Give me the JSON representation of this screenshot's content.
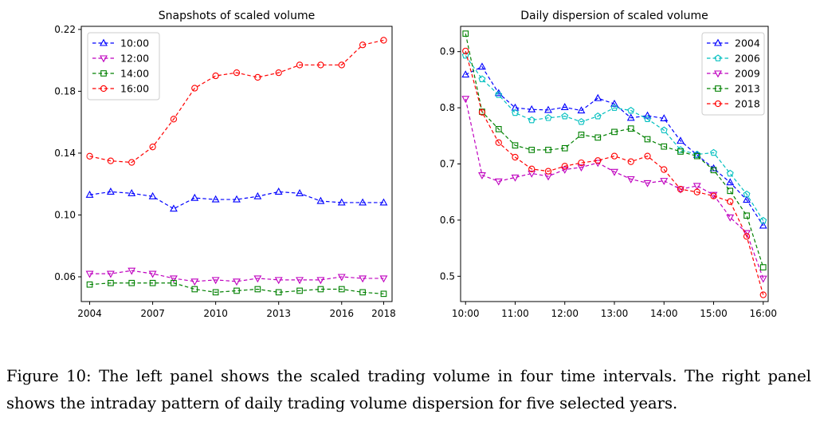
{
  "caption": "Figure 10: The left panel shows the scaled trading volume in four time intervals. The right panel shows the intraday pattern of daily trading volume dispersion for five selected years.",
  "chart_data": [
    {
      "type": "line",
      "title": "Snapshots of scaled volume",
      "xlabel": "",
      "ylabel": "",
      "xlim": [
        2003.6,
        2018.4
      ],
      "ylim": [
        0.044,
        0.222
      ],
      "xticks": [
        2004,
        2007,
        2010,
        2013,
        2016,
        2018
      ],
      "yticks": [
        0.06,
        0.1,
        0.14,
        0.18,
        0.22
      ],
      "ytick_labels": [
        "0.06",
        "0.10",
        "0.14",
        "0.18",
        "0.22"
      ],
      "legend_position": "upper-left",
      "grid": false,
      "x": [
        2004,
        2005,
        2006,
        2007,
        2008,
        2009,
        2010,
        2011,
        2012,
        2013,
        2014,
        2015,
        2016,
        2017,
        2018
      ],
      "series": [
        {
          "name": "10:00",
          "color": "#0000ff",
          "marker": "triangle-up",
          "values": [
            0.113,
            0.115,
            0.114,
            0.112,
            0.104,
            0.111,
            0.11,
            0.11,
            0.112,
            0.115,
            0.114,
            0.109,
            0.108,
            0.108,
            0.108
          ]
        },
        {
          "name": "12:00",
          "color": "#bf00bf",
          "marker": "triangle-down",
          "values": [
            0.062,
            0.062,
            0.064,
            0.062,
            0.059,
            0.057,
            0.058,
            0.057,
            0.059,
            0.058,
            0.058,
            0.058,
            0.06,
            0.059,
            0.059
          ]
        },
        {
          "name": "14:00",
          "color": "#008000",
          "marker": "square",
          "values": [
            0.055,
            0.056,
            0.056,
            0.056,
            0.056,
            0.052,
            0.05,
            0.051,
            0.052,
            0.05,
            0.051,
            0.052,
            0.052,
            0.05,
            0.049
          ]
        },
        {
          "name": "16:00",
          "color": "#ff0000",
          "marker": "circle",
          "values": [
            0.138,
            0.135,
            0.134,
            0.144,
            0.162,
            0.182,
            0.19,
            0.192,
            0.189,
            0.192,
            0.197,
            0.197,
            0.197,
            0.21,
            0.213
          ]
        }
      ]
    },
    {
      "type": "line",
      "title": "Daily dispersion of scaled volume",
      "xlabel": "",
      "ylabel": "",
      "xlim": [
        9.9,
        16.1
      ],
      "ylim": [
        0.455,
        0.945
      ],
      "xticks": [
        10,
        11,
        12,
        13,
        14,
        15,
        16
      ],
      "xtick_labels": [
        "10:00",
        "11:00",
        "12:00",
        "13:00",
        "14:00",
        "15:00",
        "16:00"
      ],
      "yticks": [
        0.5,
        0.6,
        0.7,
        0.8,
        0.9
      ],
      "ytick_labels": [
        "0.5",
        "0.6",
        "0.7",
        "0.8",
        "0.9"
      ],
      "legend_position": "upper-right",
      "grid": false,
      "x": [
        10.0,
        10.333,
        10.667,
        11.0,
        11.333,
        11.667,
        12.0,
        12.333,
        12.667,
        13.0,
        13.333,
        13.667,
        14.0,
        14.333,
        14.667,
        15.0,
        15.333,
        15.667,
        16.0
      ],
      "series": [
        {
          "name": "2004",
          "color": "#0000ff",
          "marker": "triangle-up",
          "values": [
            0.859,
            0.873,
            0.826,
            0.8,
            0.797,
            0.796,
            0.801,
            0.795,
            0.817,
            0.807,
            0.782,
            0.786,
            0.781,
            0.741,
            0.716,
            0.692,
            0.667,
            0.636,
            0.59
          ]
        },
        {
          "name": "2006",
          "color": "#00bfbf",
          "marker": "pentagon",
          "values": [
            0.893,
            0.851,
            0.823,
            0.791,
            0.778,
            0.782,
            0.785,
            0.775,
            0.785,
            0.8,
            0.795,
            0.78,
            0.76,
            0.725,
            0.717,
            0.72,
            0.683,
            0.646,
            0.599
          ]
        },
        {
          "name": "2009",
          "color": "#bf00bf",
          "marker": "triangle-down",
          "values": [
            0.816,
            0.68,
            0.669,
            0.676,
            0.683,
            0.678,
            0.69,
            0.694,
            0.702,
            0.686,
            0.673,
            0.666,
            0.67,
            0.655,
            0.661,
            0.645,
            0.605,
            0.577,
            0.496
          ]
        },
        {
          "name": "2013",
          "color": "#008000",
          "marker": "square",
          "values": [
            0.932,
            0.793,
            0.762,
            0.733,
            0.725,
            0.725,
            0.728,
            0.752,
            0.747,
            0.757,
            0.763,
            0.744,
            0.731,
            0.722,
            0.714,
            0.689,
            0.652,
            0.608,
            0.516
          ]
        },
        {
          "name": "2018",
          "color": "#ff0000",
          "marker": "circle",
          "values": [
            0.901,
            0.792,
            0.738,
            0.712,
            0.691,
            0.687,
            0.696,
            0.702,
            0.706,
            0.714,
            0.704,
            0.714,
            0.69,
            0.655,
            0.65,
            0.643,
            0.633,
            0.571,
            0.467
          ]
        }
      ]
    }
  ]
}
